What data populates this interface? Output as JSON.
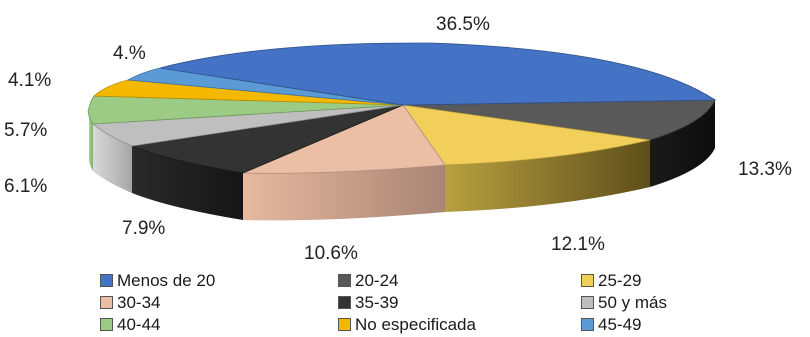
{
  "chart_data": {
    "type": "pie",
    "style": "3d-exploded",
    "slices": [
      {
        "label": "Menos de 20",
        "value": 36.5,
        "display": "36.5%",
        "color": "#4472C4"
      },
      {
        "label": "20-24",
        "value": 13.3,
        "display": "13.3%",
        "color": "#595959"
      },
      {
        "label": "25-29",
        "value": 12.1,
        "display": "12.1%",
        "color": "#F2CF5B"
      },
      {
        "label": "30-34",
        "value": 10.6,
        "display": "10.6%",
        "color": "#EBBFA6"
      },
      {
        "label": "35-39",
        "value": 7.9,
        "display": "7.9%",
        "color": "#333333"
      },
      {
        "label": "50 y  más",
        "value": 6.1,
        "display": "6.1%",
        "color": "#BFBFBF"
      },
      {
        "label": "40-44",
        "value": 5.7,
        "display": "5.7%",
        "color": "#9BCB85"
      },
      {
        "label": "No especificada",
        "value": 4.1,
        "display": "4.1%",
        "color": "#F5B800"
      },
      {
        "label": "45-49",
        "value": 4.0,
        "display": "4.%",
        "color": "#5B9BD5"
      }
    ],
    "legend_position": "bottom",
    "legend_order": [
      "Menos de 20",
      "20-24",
      "25-29",
      "30-34",
      "35-39",
      "50 y  más",
      "40-44",
      "No especificada",
      "45-49"
    ]
  }
}
